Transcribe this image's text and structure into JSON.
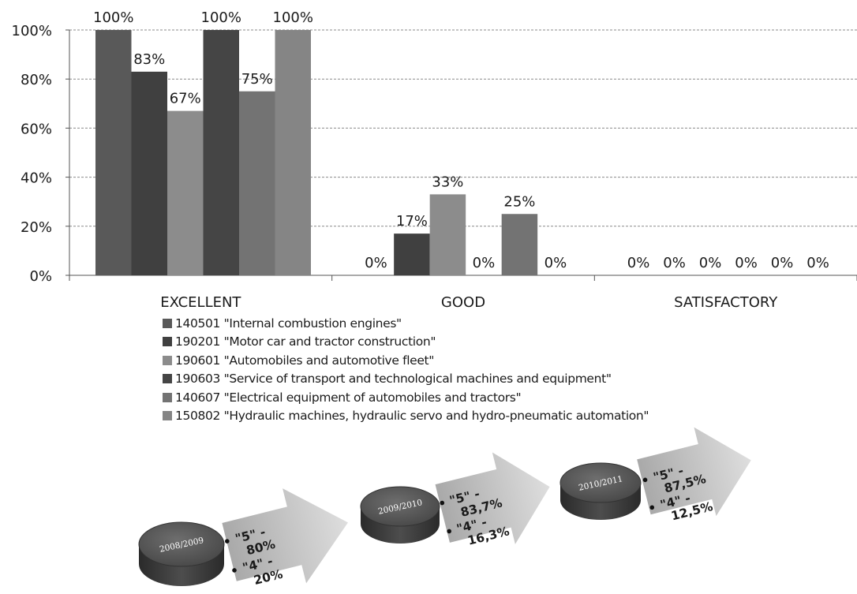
{
  "chart_data": {
    "type": "bar",
    "categories": [
      "EXCELLENT",
      "GOOD",
      "SATISFACTORY"
    ],
    "ylim": [
      0,
      100
    ],
    "y_ticks": [
      "0%",
      "20%",
      "40%",
      "60%",
      "80%",
      "100%"
    ],
    "grid": true,
    "legend_position": "bottom",
    "series": [
      {
        "name": "140501 \"Internal combustion engines\"",
        "values": [
          100,
          0,
          0
        ],
        "labels": [
          "100%",
          "0%",
          "0%"
        ],
        "color": "#595959"
      },
      {
        "name": "190201 \"Motor car and tractor construction\"",
        "values": [
          83,
          17,
          0
        ],
        "labels": [
          "83%",
          "17%",
          "0%"
        ],
        "color": "#404040"
      },
      {
        "name": "190601 \"Automobiles and automotive fleet\"",
        "values": [
          67,
          33,
          0
        ],
        "labels": [
          "67%",
          "33%",
          "0%"
        ],
        "color": "#8c8c8c"
      },
      {
        "name": "190603 \"Service of transport and technological machines and equipment\"",
        "values": [
          100,
          0,
          0
        ],
        "labels": [
          "100%",
          "0%",
          "0%"
        ],
        "color": "#454545"
      },
      {
        "name": "140607 \"Electrical equipment of automobiles and tractors\"",
        "values": [
          75,
          25,
          0
        ],
        "labels": [
          "75%",
          "25%",
          "0%"
        ],
        "color": "#737373"
      },
      {
        "name": "150802 \"Hydraulic machines, hydraulic servo and hydro-pneumatic automation\"",
        "values": [
          100,
          0,
          0
        ],
        "labels": [
          "100%",
          "0%",
          "0%"
        ],
        "color": "#858585"
      }
    ]
  },
  "infographic": {
    "years": [
      {
        "label": "2008/2009",
        "line1": "\"5\" -",
        "line2": "80%",
        "line3": "\"4\" -",
        "line4": "20%"
      },
      {
        "label": "2009/2010",
        "line1": "\"5\" -",
        "line2": "83,7%",
        "line3": "\"4\" -",
        "line4": "16,3%"
      },
      {
        "label": "2010/2011",
        "line1": "\"5\" -",
        "line2": "87,5%",
        "line3": "\"4\" -",
        "line4": "12,5%"
      }
    ]
  }
}
